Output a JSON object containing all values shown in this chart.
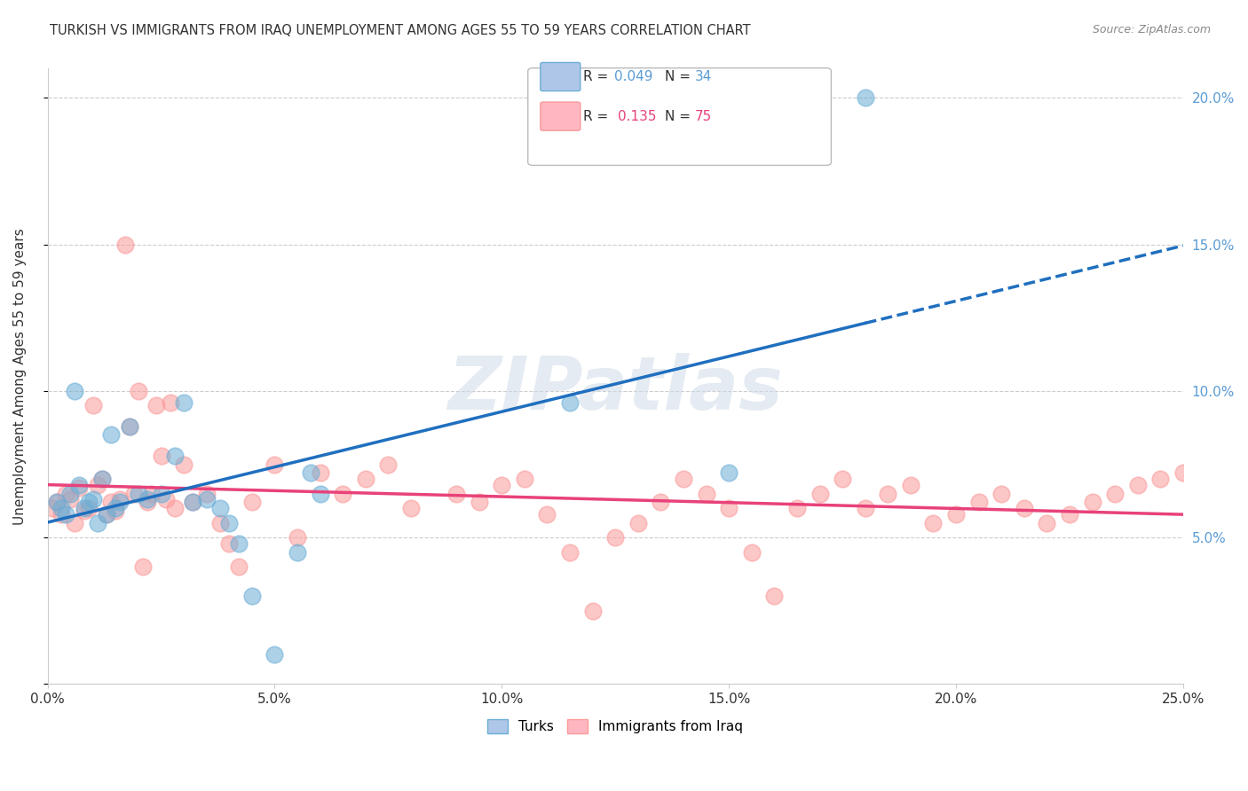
{
  "title": "TURKISH VS IMMIGRANTS FROM IRAQ UNEMPLOYMENT AMONG AGES 55 TO 59 YEARS CORRELATION CHART",
  "source": "Source: ZipAtlas.com",
  "ylabel": "Unemployment Among Ages 55 to 59 years",
  "xlim": [
    0.0,
    0.25
  ],
  "ylim": [
    0.0,
    0.21
  ],
  "xticklabels": [
    "0.0%",
    "5.0%",
    "10.0%",
    "15.0%",
    "20.0%",
    "25.0%"
  ],
  "yticklabels_right": [
    "",
    "5.0%",
    "10.0%",
    "15.0%",
    "20.0%"
  ],
  "turks_color": "#6baed6",
  "iraq_color": "#fb9a99",
  "turks_line_color": "#1f6fbf",
  "iraq_line_color": "#e8427a",
  "watermark": "ZIPatlas",
  "background_color": "#ffffff",
  "grid_color": "#cccccc",
  "title_color": "#333333",
  "right_axis_color": "#5b9bd5",
  "turks_x": [
    0.002,
    0.003,
    0.004,
    0.005,
    0.006,
    0.007,
    0.008,
    0.009,
    0.01,
    0.011,
    0.012,
    0.013,
    0.014,
    0.015,
    0.016,
    0.018,
    0.02,
    0.022,
    0.025,
    0.028,
    0.03,
    0.032,
    0.035,
    0.038,
    0.04,
    0.042,
    0.045,
    0.05,
    0.055,
    0.058,
    0.06,
    0.115,
    0.15,
    0.18
  ],
  "turks_y": [
    0.062,
    0.06,
    0.058,
    0.065,
    0.1,
    0.068,
    0.06,
    0.062,
    0.063,
    0.055,
    0.07,
    0.058,
    0.085,
    0.06,
    0.062,
    0.088,
    0.065,
    0.063,
    0.065,
    0.078,
    0.096,
    0.062,
    0.063,
    0.06,
    0.055,
    0.048,
    0.03,
    0.01,
    0.045,
    0.072,
    0.065,
    0.096,
    0.072,
    0.2
  ],
  "iraq_x": [
    0.001,
    0.002,
    0.003,
    0.004,
    0.005,
    0.006,
    0.007,
    0.008,
    0.009,
    0.01,
    0.011,
    0.012,
    0.013,
    0.014,
    0.015,
    0.016,
    0.017,
    0.018,
    0.019,
    0.02,
    0.021,
    0.022,
    0.023,
    0.024,
    0.025,
    0.026,
    0.027,
    0.028,
    0.03,
    0.032,
    0.035,
    0.038,
    0.04,
    0.042,
    0.045,
    0.05,
    0.055,
    0.06,
    0.065,
    0.07,
    0.075,
    0.08,
    0.09,
    0.095,
    0.1,
    0.105,
    0.11,
    0.115,
    0.12,
    0.125,
    0.13,
    0.135,
    0.14,
    0.145,
    0.15,
    0.155,
    0.16,
    0.165,
    0.17,
    0.175,
    0.18,
    0.185,
    0.19,
    0.195,
    0.2,
    0.205,
    0.21,
    0.215,
    0.22,
    0.225,
    0.23,
    0.235,
    0.24,
    0.245,
    0.25
  ],
  "iraq_y": [
    0.06,
    0.062,
    0.058,
    0.065,
    0.063,
    0.055,
    0.067,
    0.059,
    0.06,
    0.095,
    0.068,
    0.07,
    0.058,
    0.062,
    0.059,
    0.063,
    0.15,
    0.088,
    0.065,
    0.1,
    0.04,
    0.062,
    0.065,
    0.095,
    0.078,
    0.063,
    0.096,
    0.06,
    0.075,
    0.062,
    0.065,
    0.055,
    0.048,
    0.04,
    0.062,
    0.075,
    0.05,
    0.072,
    0.065,
    0.07,
    0.075,
    0.06,
    0.065,
    0.062,
    0.068,
    0.07,
    0.058,
    0.045,
    0.025,
    0.05,
    0.055,
    0.062,
    0.07,
    0.065,
    0.06,
    0.045,
    0.03,
    0.06,
    0.065,
    0.07,
    0.06,
    0.065,
    0.068,
    0.055,
    0.058,
    0.062,
    0.065,
    0.06,
    0.055,
    0.058,
    0.062,
    0.065,
    0.068,
    0.07,
    0.072
  ]
}
